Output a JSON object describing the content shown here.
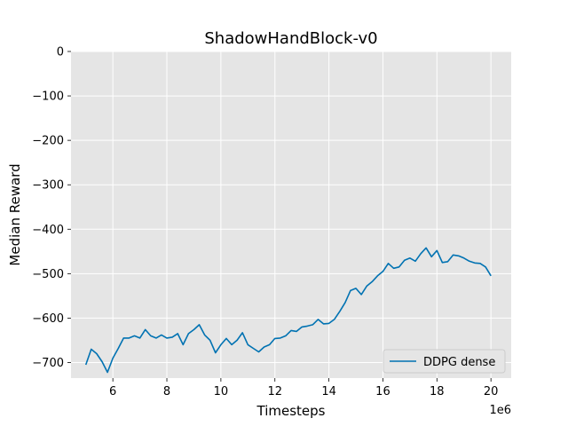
{
  "chart_data": {
    "type": "line",
    "title": "ShadowHandBlock-v0",
    "xlabel": "Timesteps",
    "ylabel": "Median Reward",
    "x_offset_label": "1e6",
    "xlim": [
      4.45,
      20.75
    ],
    "ylim": [
      -735,
      0
    ],
    "x_ticks": [
      6,
      8,
      10,
      12,
      14,
      16,
      18,
      20
    ],
    "y_ticks": [
      0,
      -100,
      -200,
      -300,
      -400,
      -500,
      -600,
      -700
    ],
    "x_tick_labels": [
      "6",
      "8",
      "10",
      "12",
      "14",
      "16",
      "18",
      "20"
    ],
    "y_tick_labels": [
      "0",
      "−100",
      "−200",
      "−300",
      "−400",
      "−500",
      "−600",
      "−700"
    ],
    "grid": true,
    "legend_position": "lower right",
    "series": [
      {
        "name": "DDPG dense",
        "color": "#0072B2",
        "x": [
          5.0,
          5.2,
          5.4,
          5.6,
          5.8,
          6.0,
          6.2,
          6.4,
          6.6,
          6.8,
          7.0,
          7.2,
          7.4,
          7.6,
          7.8,
          8.0,
          8.2,
          8.4,
          8.6,
          8.8,
          9.0,
          9.2,
          9.4,
          9.6,
          9.8,
          10.0,
          10.2,
          10.4,
          10.6,
          10.8,
          11.0,
          11.2,
          11.4,
          11.6,
          11.8,
          12.0,
          12.2,
          12.4,
          12.6,
          12.8,
          13.0,
          13.2,
          13.4,
          13.6,
          13.8,
          14.0,
          14.2,
          14.4,
          14.6,
          14.8,
          15.0,
          15.2,
          15.4,
          15.6,
          15.8,
          16.0,
          16.2,
          16.4,
          16.6,
          16.8,
          17.0,
          17.2,
          17.4,
          17.6,
          17.8,
          18.0,
          18.2,
          18.4,
          18.6,
          18.8,
          19.0,
          19.2,
          19.4,
          19.6,
          19.8,
          20.0
        ],
        "y": [
          -705,
          -670,
          -680,
          -698,
          -722,
          -690,
          -668,
          -645,
          -645,
          -640,
          -645,
          -626,
          -640,
          -645,
          -638,
          -645,
          -643,
          -635,
          -660,
          -635,
          -626,
          -615,
          -638,
          -650,
          -678,
          -660,
          -646,
          -660,
          -650,
          -633,
          -660,
          -668,
          -676,
          -665,
          -660,
          -646,
          -645,
          -640,
          -628,
          -630,
          -620,
          -618,
          -615,
          -603,
          -613,
          -612,
          -603,
          -585,
          -565,
          -538,
          -533,
          -547,
          -528,
          -518,
          -505,
          -495,
          -477,
          -488,
          -485,
          -470,
          -465,
          -472,
          -455,
          -442,
          -462,
          -448,
          -475,
          -473,
          -458,
          -460,
          -465,
          -472,
          -476,
          -477,
          -485,
          -505
        ]
      }
    ]
  }
}
